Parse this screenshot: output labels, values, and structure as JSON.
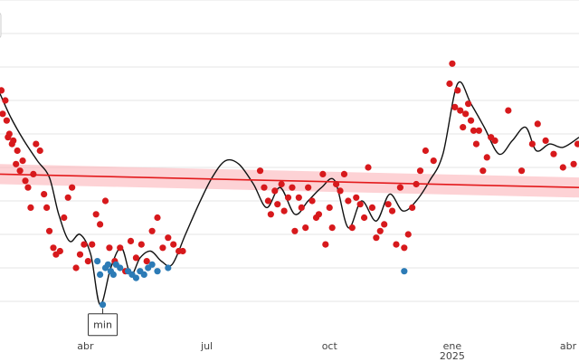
{
  "chart_data": {
    "type": "scatter",
    "grid": true,
    "colors": {
      "above": "#d7191c",
      "below": "#2c7bb6",
      "smooth": "#111111",
      "trend": "#e31a1c",
      "trend_band": "#fbb4b9",
      "grid": "#e6e6e6",
      "annotation_border": "#333333"
    },
    "x_ticks": [
      {
        "label": "abr",
        "sub": "",
        "x": "2024-04-01"
      },
      {
        "label": "jul",
        "sub": "",
        "x": "2024-07-01"
      },
      {
        "label": "oct",
        "sub": "",
        "x": "2024-10-01"
      },
      {
        "label": "ene",
        "sub": "2025",
        "x": "2025-01-01"
      },
      {
        "label": "abr",
        "sub": "",
        "x": "2025-04-01"
      }
    ],
    "xlim": [
      "2024-01-28",
      "2025-04-06"
    ],
    "ylim": [
      0,
      100
    ],
    "trend": {
      "x": [
        "2024-01-28",
        "2025-04-06"
      ],
      "y": [
        48,
        44
      ],
      "band": 3
    },
    "smooth": {
      "x": [
        "2024-01-28",
        "2024-02-05",
        "2024-02-15",
        "2024-02-25",
        "2024-03-05",
        "2024-03-12",
        "2024-03-20",
        "2024-03-28",
        "2024-04-05",
        "2024-04-12",
        "2024-04-20",
        "2024-04-28",
        "2024-05-05",
        "2024-05-12",
        "2024-05-20",
        "2024-05-28",
        "2024-06-05",
        "2024-06-15",
        "2024-06-25",
        "2024-07-05",
        "2024-07-15",
        "2024-07-25",
        "2024-08-05",
        "2024-08-15",
        "2024-08-25",
        "2024-09-05",
        "2024-09-15",
        "2024-09-25",
        "2024-10-05",
        "2024-10-15",
        "2024-10-25",
        "2024-11-05",
        "2024-11-15",
        "2024-11-25",
        "2024-12-05",
        "2024-12-15",
        "2024-12-25",
        "2025-01-05",
        "2025-01-15",
        "2025-01-25",
        "2025-02-05",
        "2025-02-15",
        "2025-02-25",
        "2025-03-05",
        "2025-03-15",
        "2025-03-25",
        "2025-04-06"
      ],
      "y": [
        72,
        65,
        58,
        52,
        47,
        36,
        28,
        30,
        24,
        9,
        20,
        26,
        18,
        23,
        25,
        22,
        21,
        30,
        39,
        47,
        52,
        51,
        45,
        38,
        44,
        36,
        40,
        44,
        46,
        32,
        40,
        34,
        42,
        37,
        40,
        46,
        54,
        75,
        69,
        62,
        54,
        58,
        62,
        55,
        57,
        56,
        59
      ]
    },
    "series": [
      {
        "role": "above",
        "x": [
          "2024-01-29",
          "2024-01-30",
          "2024-02-01",
          "2024-02-02",
          "2024-02-03",
          "2024-02-04",
          "2024-02-06",
          "2024-02-07",
          "2024-02-09",
          "2024-02-10",
          "2024-02-12",
          "2024-02-14",
          "2024-02-16",
          "2024-02-18",
          "2024-02-20",
          "2024-02-22",
          "2024-02-24",
          "2024-02-27",
          "2024-03-01",
          "2024-03-03",
          "2024-03-05",
          "2024-03-08",
          "2024-03-10",
          "2024-03-13",
          "2024-03-16",
          "2024-03-19",
          "2024-03-22",
          "2024-03-25",
          "2024-03-28",
          "2024-03-31",
          "2024-04-03",
          "2024-04-06",
          "2024-04-09",
          "2024-04-12",
          "2024-04-16",
          "2024-04-19",
          "2024-04-23",
          "2024-04-27",
          "2024-05-01",
          "2024-05-05",
          "2024-05-09",
          "2024-05-13",
          "2024-05-17",
          "2024-05-21",
          "2024-05-25",
          "2024-05-29",
          "2024-06-02",
          "2024-06-06",
          "2024-06-10",
          "2024-06-13",
          "2024-08-10",
          "2024-08-13",
          "2024-08-16",
          "2024-08-18",
          "2024-08-21",
          "2024-08-23",
          "2024-08-26",
          "2024-08-28",
          "2024-08-31",
          "2024-09-03",
          "2024-09-05",
          "2024-09-08",
          "2024-09-10",
          "2024-09-13",
          "2024-09-15",
          "2024-09-18",
          "2024-09-21",
          "2024-09-23",
          "2024-09-26",
          "2024-09-28",
          "2024-10-01",
          "2024-10-03",
          "2024-10-06",
          "2024-10-09",
          "2024-10-12",
          "2024-10-15",
          "2024-10-18",
          "2024-10-21",
          "2024-10-24",
          "2024-10-27",
          "2024-10-30",
          "2024-11-02",
          "2024-11-05",
          "2024-11-08",
          "2024-11-11",
          "2024-11-14",
          "2024-11-17",
          "2024-11-20",
          "2024-11-23",
          "2024-11-26",
          "2024-11-29",
          "2024-12-02",
          "2024-12-05",
          "2024-12-08",
          "2024-12-12",
          "2024-12-18",
          "2024-12-30",
          "2025-01-01",
          "2025-01-03",
          "2025-01-05",
          "2025-01-07",
          "2025-01-09",
          "2025-01-11",
          "2025-01-13",
          "2025-01-15",
          "2025-01-17",
          "2025-01-19",
          "2025-01-21",
          "2025-01-24",
          "2025-01-27",
          "2025-01-30",
          "2025-02-02",
          "2025-02-12",
          "2025-02-22",
          "2025-03-02",
          "2025-03-06",
          "2025-03-12",
          "2025-03-18",
          "2025-03-25",
          "2025-04-02",
          "2025-04-05"
        ],
        "y": [
          73,
          66,
          70,
          64,
          59,
          60,
          57,
          58,
          51,
          55,
          49,
          52,
          46,
          44,
          38,
          48,
          57,
          55,
          42,
          38,
          31,
          26,
          24,
          25,
          35,
          41,
          44,
          20,
          24,
          27,
          22,
          27,
          36,
          33,
          40,
          26,
          22,
          26,
          19,
          28,
          23,
          27,
          22,
          31,
          35,
          26,
          29,
          27,
          25,
          25,
          49,
          44,
          40,
          36,
          43,
          39,
          45,
          37,
          41,
          44,
          31,
          41,
          38,
          32,
          44,
          40,
          35,
          36,
          48,
          27,
          38,
          32,
          45,
          43,
          48,
          40,
          32,
          41,
          39,
          35,
          50,
          38,
          29,
          31,
          33,
          39,
          37,
          27,
          44,
          26,
          30,
          38,
          45,
          49,
          55,
          52,
          75,
          81,
          68,
          73,
          67,
          62,
          66,
          69,
          64,
          61,
          57,
          61,
          49,
          53,
          59,
          58,
          67,
          49,
          57,
          63,
          58,
          54,
          50,
          51,
          57
        ]
      },
      {
        "role": "below",
        "x": [
          "2024-04-10",
          "2024-04-12",
          "2024-04-14",
          "2024-04-16",
          "2024-04-18",
          "2024-04-20",
          "2024-04-22",
          "2024-04-24",
          "2024-04-27",
          "2024-05-03",
          "2024-05-06",
          "2024-05-09",
          "2024-05-12",
          "2024-05-15",
          "2024-05-18",
          "2024-05-21",
          "2024-05-25",
          "2024-06-02",
          "2024-11-26"
        ],
        "y": [
          22,
          18,
          9,
          20,
          21,
          19,
          18,
          21,
          20,
          19,
          18,
          17,
          19,
          18,
          20,
          21,
          19,
          20,
          19
        ]
      }
    ],
    "annotations": [
      {
        "text": "min",
        "x": "2024-04-14",
        "y": 9
      }
    ]
  }
}
